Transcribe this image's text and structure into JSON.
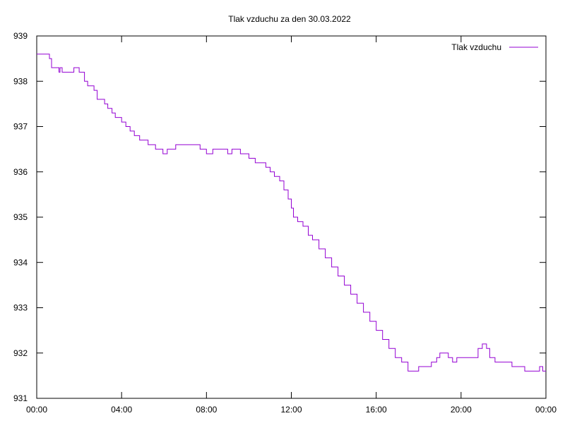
{
  "chart_data": {
    "type": "line",
    "title": "Tlak vzduchu za den 30.03.2022",
    "xlabel": "",
    "ylabel": "",
    "x_ticks": [
      "00:00",
      "04:00",
      "08:00",
      "12:00",
      "16:00",
      "20:00",
      "00:00"
    ],
    "y_ticks": [
      "931",
      "932",
      "933",
      "934",
      "935",
      "936",
      "937",
      "938",
      "939"
    ],
    "xlim": [
      0,
      24
    ],
    "ylim": [
      931,
      939
    ],
    "grid": false,
    "legend_position": "top-right",
    "series": [
      {
        "name": "Tlak vzduchu",
        "color": "#9400d3",
        "x": [
          0.0,
          0.1,
          0.25,
          0.45,
          0.6,
          0.7,
          0.9,
          1.05,
          1.1,
          1.2,
          1.3,
          1.4,
          1.6,
          1.75,
          1.85,
          2.0,
          2.1,
          2.25,
          2.4,
          2.55,
          2.7,
          2.85,
          3.0,
          3.2,
          3.35,
          3.55,
          3.7,
          3.85,
          4.0,
          4.2,
          4.4,
          4.6,
          4.85,
          5.1,
          5.25,
          5.45,
          5.6,
          5.8,
          5.95,
          6.15,
          6.35,
          6.55,
          6.75,
          6.95,
          7.1,
          7.3,
          7.5,
          7.7,
          7.9,
          8.0,
          8.3,
          8.6,
          8.8,
          9.0,
          9.2,
          9.4,
          9.6,
          9.75,
          9.85,
          10.0,
          10.3,
          10.6,
          10.8,
          11.0,
          11.2,
          11.45,
          11.65,
          11.85,
          12.0,
          12.1,
          12.3,
          12.55,
          12.8,
          13.0,
          13.3,
          13.6,
          13.9,
          14.2,
          14.5,
          14.8,
          15.1,
          15.4,
          15.7,
          16.0,
          16.3,
          16.6,
          16.9,
          17.2,
          17.5,
          17.8,
          18.0,
          18.3,
          18.6,
          18.85,
          19.0,
          19.2,
          19.4,
          19.6,
          19.8,
          20.0,
          20.2,
          20.5,
          20.8,
          21.0,
          21.2,
          21.35,
          21.6,
          21.9,
          22.1,
          22.4,
          22.7,
          23.0,
          23.3,
          23.55,
          23.7,
          23.85,
          24.0
        ],
        "y": [
          938.6,
          938.6,
          938.6,
          938.6,
          938.5,
          938.3,
          938.3,
          938.2,
          938.3,
          938.2,
          938.2,
          938.2,
          938.2,
          938.3,
          938.3,
          938.2,
          938.2,
          938.0,
          937.9,
          937.9,
          937.8,
          937.6,
          937.6,
          937.5,
          937.4,
          937.3,
          937.2,
          937.2,
          937.1,
          937.0,
          936.9,
          936.8,
          936.7,
          936.7,
          936.6,
          936.6,
          936.5,
          936.5,
          936.4,
          936.5,
          936.5,
          936.6,
          936.6,
          936.6,
          936.6,
          936.6,
          936.6,
          936.5,
          936.5,
          936.4,
          936.5,
          936.5,
          936.5,
          936.4,
          936.5,
          936.5,
          936.4,
          936.4,
          936.4,
          936.3,
          936.2,
          936.2,
          936.1,
          936.0,
          935.9,
          935.8,
          935.6,
          935.4,
          935.2,
          935.0,
          934.9,
          934.8,
          934.6,
          934.5,
          934.3,
          934.1,
          933.9,
          933.7,
          933.5,
          933.3,
          933.1,
          932.9,
          932.7,
          932.5,
          932.3,
          932.1,
          931.9,
          931.8,
          931.6,
          931.6,
          931.7,
          931.7,
          931.8,
          931.9,
          932.0,
          932.0,
          931.9,
          931.8,
          931.9,
          931.9,
          931.9,
          931.9,
          932.1,
          932.2,
          932.1,
          931.9,
          931.8,
          931.8,
          931.8,
          931.7,
          931.7,
          931.6,
          931.6,
          931.6,
          931.7,
          931.6,
          931.6
        ]
      }
    ]
  }
}
